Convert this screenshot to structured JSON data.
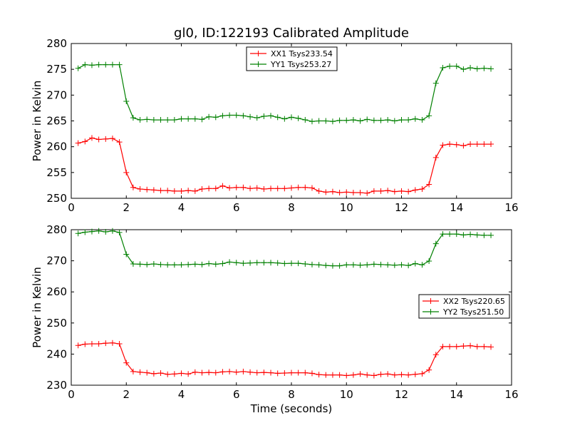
{
  "title": "gl0, ID:122193 Calibrated Amplitude",
  "chart_data": [
    {
      "type": "line",
      "ylabel": "Power in Kelvin",
      "xlabel": "",
      "xlim": [
        0,
        16
      ],
      "ylim": [
        250,
        280
      ],
      "xticks": [
        "0",
        "2",
        "4",
        "6",
        "8",
        "10",
        "12",
        "14",
        "16"
      ],
      "yticks": [
        "250",
        "255",
        "260",
        "265",
        "270",
        "275",
        "280"
      ],
      "legend_position": "top-center",
      "x": [
        0.25,
        0.5,
        0.75,
        1.0,
        1.25,
        1.5,
        1.75,
        2.0,
        2.25,
        2.5,
        2.75,
        3.0,
        3.25,
        3.5,
        3.75,
        4.0,
        4.25,
        4.5,
        4.75,
        5.0,
        5.25,
        5.5,
        5.75,
        6.0,
        6.25,
        6.5,
        6.75,
        7.0,
        7.25,
        7.5,
        7.75,
        8.0,
        8.25,
        8.5,
        8.75,
        9.0,
        9.25,
        9.5,
        9.75,
        10.0,
        10.25,
        10.5,
        10.75,
        11.0,
        11.25,
        11.5,
        11.75,
        12.0,
        12.25,
        12.5,
        12.75,
        13.0,
        13.25,
        13.5,
        13.75,
        14.0,
        14.25,
        14.5,
        14.75,
        15.0,
        15.25
      ],
      "series": [
        {
          "name": "XX1 Tsys233.54",
          "color": "#ff0000",
          "values": [
            260.7,
            261.0,
            261.7,
            261.4,
            261.5,
            261.6,
            260.9,
            255.0,
            252.1,
            251.8,
            251.7,
            251.6,
            251.5,
            251.5,
            251.4,
            251.4,
            251.5,
            251.4,
            251.8,
            251.9,
            251.9,
            252.4,
            252.0,
            252.1,
            252.1,
            251.9,
            252.0,
            251.8,
            251.9,
            251.9,
            251.9,
            252.0,
            252.1,
            252.1,
            252.0,
            251.4,
            251.2,
            251.3,
            251.1,
            251.2,
            251.1,
            251.1,
            251.0,
            251.4,
            251.4,
            251.5,
            251.3,
            251.4,
            251.3,
            251.6,
            251.8,
            252.7,
            257.9,
            260.3,
            260.5,
            260.4,
            260.2,
            260.5,
            260.5,
            260.5,
            260.5
          ]
        },
        {
          "name": "YY1 Tsys253.27",
          "color": "#008000",
          "values": [
            275.2,
            275.9,
            275.8,
            275.9,
            275.9,
            275.9,
            275.9,
            268.8,
            265.6,
            265.2,
            265.3,
            265.2,
            265.2,
            265.2,
            265.2,
            265.4,
            265.4,
            265.4,
            265.3,
            265.8,
            265.7,
            266.0,
            266.1,
            266.1,
            266.0,
            265.8,
            265.6,
            265.9,
            266.0,
            265.7,
            265.4,
            265.7,
            265.5,
            265.2,
            264.9,
            265.0,
            265.0,
            264.9,
            265.1,
            265.1,
            265.2,
            265.0,
            265.3,
            265.1,
            265.1,
            265.2,
            265.0,
            265.2,
            265.2,
            265.4,
            265.2,
            266.0,
            272.3,
            275.3,
            275.6,
            275.6,
            275.0,
            275.3,
            275.1,
            275.2,
            275.1
          ]
        }
      ]
    },
    {
      "type": "line",
      "ylabel": "Power in Kelvin",
      "xlabel": "Time (seconds)",
      "xlim": [
        0,
        16
      ],
      "ylim": [
        230,
        280
      ],
      "xticks": [
        "0",
        "2",
        "4",
        "6",
        "8",
        "10",
        "12",
        "14",
        "16"
      ],
      "yticks": [
        "230",
        "240",
        "250",
        "260",
        "270",
        "280"
      ],
      "legend_position": "center-right",
      "x": [
        0.25,
        0.5,
        0.75,
        1.0,
        1.25,
        1.5,
        1.75,
        2.0,
        2.25,
        2.5,
        2.75,
        3.0,
        3.25,
        3.5,
        3.75,
        4.0,
        4.25,
        4.5,
        4.75,
        5.0,
        5.25,
        5.5,
        5.75,
        6.0,
        6.25,
        6.5,
        6.75,
        7.0,
        7.25,
        7.5,
        7.75,
        8.0,
        8.25,
        8.5,
        8.75,
        9.0,
        9.25,
        9.5,
        9.75,
        10.0,
        10.25,
        10.5,
        10.75,
        11.0,
        11.25,
        11.5,
        11.75,
        12.0,
        12.25,
        12.5,
        12.75,
        13.0,
        13.25,
        13.5,
        13.75,
        14.0,
        14.25,
        14.5,
        14.75,
        15.0,
        15.25
      ],
      "series": [
        {
          "name": "XX2 Tsys220.65",
          "color": "#ff0000",
          "values": [
            242.8,
            243.2,
            243.3,
            243.3,
            243.5,
            243.6,
            243.3,
            237.2,
            234.4,
            234.2,
            234.0,
            233.7,
            233.9,
            233.5,
            233.6,
            233.8,
            233.6,
            234.2,
            234.0,
            234.1,
            234.0,
            234.3,
            234.4,
            234.2,
            234.4,
            234.2,
            234.0,
            234.1,
            234.0,
            233.8,
            233.9,
            234.0,
            234.0,
            234.0,
            233.8,
            233.4,
            233.3,
            233.3,
            233.3,
            233.1,
            233.3,
            233.6,
            233.3,
            233.1,
            233.5,
            233.6,
            233.3,
            233.4,
            233.3,
            233.5,
            233.7,
            234.9,
            239.8,
            242.4,
            242.4,
            242.4,
            242.6,
            242.7,
            242.4,
            242.4,
            242.3
          ]
        },
        {
          "name": "YY2 Tsys251.50",
          "color": "#008000",
          "values": [
            278.8,
            279.2,
            279.4,
            279.6,
            279.3,
            279.6,
            279.1,
            272.1,
            269.0,
            268.9,
            268.8,
            269.0,
            268.8,
            268.7,
            268.7,
            268.7,
            268.8,
            268.9,
            268.8,
            269.1,
            268.9,
            269.1,
            269.6,
            269.4,
            269.2,
            269.3,
            269.4,
            269.4,
            269.4,
            269.3,
            269.1,
            269.2,
            269.2,
            269.0,
            268.8,
            268.7,
            268.5,
            268.4,
            268.4,
            268.7,
            268.7,
            268.6,
            268.7,
            268.9,
            268.8,
            268.7,
            268.6,
            268.7,
            268.5,
            269.1,
            268.7,
            269.9,
            275.5,
            278.6,
            278.6,
            278.6,
            278.3,
            278.5,
            278.3,
            278.2,
            278.2
          ]
        }
      ]
    }
  ]
}
